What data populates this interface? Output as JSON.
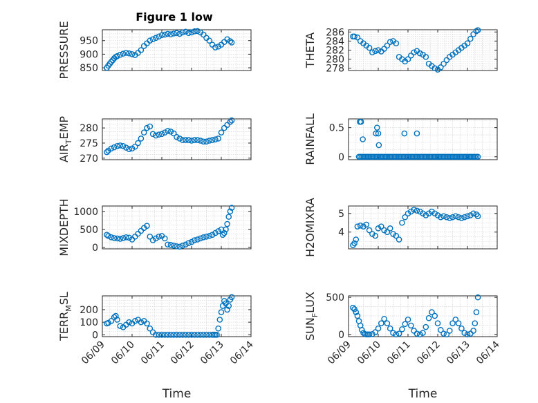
{
  "figure_title": "Figure 1 low",
  "colors": {
    "marker": "#0072BD",
    "axes": "#262626",
    "grid": "#d9d9d9"
  },
  "chart_data": [
    {
      "type": "scatter",
      "ylabel": "PRESSURE",
      "ylim": [
        840,
        990
      ],
      "yticks": [
        850,
        900,
        950
      ],
      "xlabel": "",
      "x": [
        9.15,
        9.2,
        9.25,
        9.3,
        9.35,
        9.4,
        9.45,
        9.5,
        9.6,
        9.7,
        9.8,
        9.9,
        10.0,
        10.1,
        10.2,
        10.3,
        10.4,
        10.5,
        10.6,
        10.7,
        10.8,
        10.9,
        11.0,
        11.1,
        11.2,
        11.3,
        11.4,
        11.5,
        11.6,
        11.7,
        11.8,
        11.9,
        12.0,
        12.1,
        12.2,
        12.3,
        12.4,
        12.5,
        12.6,
        12.7,
        12.8,
        12.9,
        13.0,
        13.1,
        13.2,
        13.3,
        13.35
      ],
      "y": [
        850,
        858,
        865,
        872,
        878,
        885,
        890,
        893,
        898,
        902,
        905,
        903,
        900,
        897,
        905,
        915,
        930,
        940,
        950,
        955,
        960,
        965,
        970,
        972,
        975,
        973,
        976,
        978,
        975,
        980,
        983,
        978,
        980,
        984,
        985,
        980,
        972,
        960,
        950,
        935,
        925,
        928,
        935,
        945,
        955,
        948,
        943
      ]
    },
    {
      "type": "scatter",
      "ylabel": "THETA",
      "ylim": [
        277.5,
        286.5
      ],
      "yticks": [
        278,
        280,
        282,
        284,
        286
      ],
      "xlabel": "",
      "x": [
        9.15,
        9.2,
        9.3,
        9.4,
        9.5,
        9.6,
        9.7,
        9.8,
        9.9,
        10.0,
        10.1,
        10.2,
        10.3,
        10.4,
        10.5,
        10.6,
        10.7,
        10.8,
        10.9,
        11.0,
        11.1,
        11.2,
        11.3,
        11.4,
        11.5,
        11.6,
        11.7,
        11.8,
        11.9,
        12.0,
        12.1,
        12.2,
        12.3,
        12.4,
        12.5,
        12.6,
        12.7,
        12.8,
        12.9,
        13.0,
        13.1,
        13.2,
        13.3,
        13.35
      ],
      "y": [
        285,
        285,
        284.8,
        284,
        283.5,
        283,
        282.5,
        281.5,
        281.8,
        282,
        281.7,
        282.3,
        283,
        283.8,
        284,
        283.5,
        280.5,
        280,
        279.5,
        280,
        280.8,
        281.5,
        281.8,
        281.3,
        281,
        280.5,
        279,
        278.5,
        278,
        277.7,
        278.2,
        279,
        279.8,
        280.5,
        281,
        281.5,
        282,
        282.5,
        283,
        283.5,
        284.5,
        285.5,
        286.2,
        286.4
      ]
    },
    {
      "type": "scatter",
      "ylabel": "AIR_TEMP",
      "ylim": [
        269.5,
        283
      ],
      "yticks": [
        270,
        275,
        280
      ],
      "xlabel": "",
      "x": [
        9.15,
        9.2,
        9.3,
        9.4,
        9.5,
        9.6,
        9.7,
        9.8,
        9.9,
        10.0,
        10.1,
        10.2,
        10.3,
        10.4,
        10.5,
        10.6,
        10.7,
        10.8,
        10.9,
        11.0,
        11.1,
        11.2,
        11.3,
        11.4,
        11.5,
        11.6,
        11.7,
        11.8,
        11.9,
        12.0,
        12.1,
        12.2,
        12.3,
        12.4,
        12.5,
        12.6,
        12.7,
        12.8,
        12.9,
        13.0,
        13.1,
        13.2,
        13.3,
        13.35
      ],
      "y": [
        272,
        272.5,
        273.2,
        273.6,
        274,
        274.2,
        274,
        273.5,
        273,
        273.2,
        273.8,
        275,
        276.5,
        278.5,
        280,
        280.5,
        278,
        277.5,
        277.8,
        278,
        278.5,
        279,
        278.8,
        278.2,
        277,
        276.5,
        276,
        276,
        276,
        275.8,
        276,
        276,
        275.8,
        275.5,
        275.5,
        275.8,
        276,
        276.2,
        276.5,
        278.5,
        280,
        281,
        282,
        282.5
      ]
    },
    {
      "type": "scatter",
      "ylabel": "RAINFALL",
      "ylim": [
        -0.05,
        0.65
      ],
      "yticks": [
        0,
        0.5
      ],
      "xlabel": "",
      "x": [
        9.35,
        9.4,
        9.45,
        9.5,
        9.55,
        9.6,
        9.65,
        9.7,
        9.75,
        9.8,
        9.85,
        9.9,
        9.95,
        10.0,
        10.05,
        10.1,
        10.15,
        10.2,
        10.25,
        10.3,
        10.35,
        10.4,
        10.45,
        10.5,
        10.55,
        10.6,
        10.65,
        10.7,
        10.75,
        10.8,
        10.85,
        10.9,
        10.95,
        11.0,
        11.05,
        11.1,
        11.15,
        11.2,
        11.25,
        11.3,
        11.35,
        11.4,
        11.45,
        11.5,
        11.55,
        11.6,
        11.65,
        11.7,
        11.75,
        11.8,
        11.85,
        11.9,
        11.95,
        12.0,
        12.05,
        12.1,
        12.15,
        12.2,
        12.25,
        12.3,
        12.35,
        12.4,
        12.45,
        12.5,
        12.55,
        12.6,
        12.65,
        12.7,
        12.75,
        12.8,
        12.85,
        12.9,
        12.95,
        13.0,
        13.05,
        13.1,
        13.15,
        13.2,
        13.25,
        13.3,
        13.35,
        9.38,
        9.42,
        9.48,
        9.92,
        9.96,
        10.0,
        10.02,
        10.88,
        11.3
      ],
      "y": [
        0,
        0,
        0,
        0,
        0,
        0,
        0,
        0,
        0,
        0,
        0,
        0,
        0,
        0,
        0,
        0,
        0,
        0,
        0,
        0,
        0,
        0,
        0,
        0,
        0,
        0,
        0,
        0,
        0,
        0,
        0,
        0,
        0,
        0,
        0,
        0,
        0,
        0,
        0,
        0,
        0,
        0,
        0,
        0,
        0,
        0,
        0,
        0,
        0,
        0,
        0,
        0,
        0,
        0,
        0,
        0,
        0,
        0,
        0,
        0,
        0,
        0,
        0,
        0,
        0,
        0,
        0,
        0,
        0,
        0,
        0,
        0,
        0,
        0,
        0,
        0,
        0,
        0,
        0,
        0,
        0,
        0.6,
        0.6,
        0.3,
        0.4,
        0.5,
        0.4,
        0.2,
        0.4,
        0.4
      ]
    },
    {
      "type": "scatter",
      "ylabel": "MIXDEPTH",
      "ylim": [
        -40,
        1150
      ],
      "yticks": [
        0,
        500,
        1000
      ],
      "xlabel": "",
      "x": [
        9.15,
        9.2,
        9.3,
        9.4,
        9.5,
        9.6,
        9.7,
        9.8,
        9.9,
        10.0,
        10.1,
        10.2,
        10.3,
        10.4,
        10.5,
        10.6,
        10.7,
        10.8,
        10.9,
        11.0,
        11.1,
        11.2,
        11.3,
        11.4,
        11.5,
        11.6,
        11.7,
        11.8,
        11.9,
        12.0,
        12.1,
        12.2,
        12.3,
        12.4,
        12.5,
        12.6,
        12.7,
        12.8,
        12.9,
        13.0,
        13.05,
        13.1,
        13.15,
        13.2,
        13.25,
        13.3,
        13.35
      ],
      "y": [
        350,
        320,
        280,
        260,
        250,
        240,
        260,
        280,
        270,
        220,
        300,
        380,
        460,
        540,
        600,
        300,
        200,
        250,
        300,
        320,
        250,
        80,
        70,
        50,
        30,
        20,
        50,
        80,
        120,
        150,
        200,
        220,
        250,
        280,
        300,
        320,
        350,
        400,
        450,
        500,
        350,
        400,
        500,
        650,
        850,
        1000,
        1100
      ]
    },
    {
      "type": "scatter",
      "ylabel": "H2OMIXRA",
      "ylim": [
        3.1,
        5.4
      ],
      "yticks": [
        4,
        5
      ],
      "xlabel": "",
      "x": [
        9.15,
        9.2,
        9.25,
        9.3,
        9.4,
        9.5,
        9.6,
        9.7,
        9.8,
        9.9,
        10.0,
        10.1,
        10.2,
        10.3,
        10.4,
        10.5,
        10.6,
        10.7,
        10.8,
        10.9,
        11.0,
        11.1,
        11.2,
        11.3,
        11.4,
        11.5,
        11.6,
        11.7,
        11.8,
        11.9,
        12.0,
        12.1,
        12.2,
        12.3,
        12.4,
        12.5,
        12.6,
        12.7,
        12.8,
        12.9,
        13.0,
        13.1,
        13.2,
        13.3,
        13.35
      ],
      "y": [
        3.3,
        3.4,
        3.6,
        4.3,
        4.35,
        4.3,
        4.4,
        4.1,
        3.9,
        3.8,
        4.2,
        4.3,
        4.1,
        4.0,
        4.2,
        3.9,
        3.8,
        3.6,
        4.5,
        4.8,
        5.0,
        5.1,
        5.2,
        5.15,
        5.1,
        5.0,
        4.9,
        5.0,
        5.1,
        5.0,
        4.9,
        4.8,
        4.85,
        4.8,
        4.75,
        4.8,
        4.85,
        4.8,
        4.75,
        4.8,
        4.85,
        4.9,
        5.0,
        4.95,
        4.85
      ]
    },
    {
      "type": "scatter",
      "ylabel": "TERR_MSL",
      "ylim": [
        -15,
        310
      ],
      "yticks": [
        0,
        100,
        200
      ],
      "xlabel": "Time",
      "xticks": [
        "06/09",
        "06/10",
        "06/11",
        "06/12",
        "06/13",
        "06/14"
      ],
      "x": [
        9.15,
        9.2,
        9.3,
        9.4,
        9.45,
        9.5,
        9.6,
        9.7,
        9.8,
        9.9,
        10.0,
        10.1,
        10.2,
        10.3,
        10.4,
        10.5,
        10.6,
        10.7,
        10.8,
        10.9,
        11.0,
        11.1,
        11.2,
        11.3,
        11.4,
        11.5,
        11.6,
        11.7,
        11.8,
        11.9,
        12.0,
        12.1,
        12.2,
        12.3,
        12.4,
        12.5,
        12.6,
        12.7,
        12.75,
        12.8,
        12.85,
        12.9,
        12.95,
        13.0,
        13.05,
        13.1,
        13.15,
        13.2,
        13.25,
        13.3,
        13.35
      ],
      "y": [
        90,
        95,
        110,
        140,
        150,
        120,
        70,
        60,
        80,
        100,
        90,
        110,
        120,
        100,
        110,
        90,
        50,
        20,
        0,
        0,
        0,
        0,
        0,
        0,
        0,
        0,
        0,
        0,
        0,
        0,
        0,
        0,
        0,
        0,
        0,
        0,
        0,
        0,
        0,
        0,
        0,
        50,
        120,
        180,
        230,
        270,
        250,
        200,
        230,
        280,
        300
      ]
    },
    {
      "type": "scatter",
      "ylabel": "SUN_FLUX",
      "ylim": [
        -30,
        520
      ],
      "yticks": [
        0,
        500
      ],
      "xlabel": "Time",
      "xticks": [
        "06/09",
        "06/10",
        "06/11",
        "06/12",
        "06/13",
        "06/14"
      ],
      "x": [
        9.15,
        9.2,
        9.25,
        9.3,
        9.35,
        9.4,
        9.45,
        9.5,
        9.55,
        9.6,
        9.65,
        9.7,
        9.8,
        9.9,
        10.0,
        10.1,
        10.2,
        10.3,
        10.4,
        10.5,
        10.6,
        10.7,
        10.8,
        10.9,
        11.0,
        11.1,
        11.2,
        11.3,
        11.4,
        11.5,
        11.6,
        11.7,
        11.8,
        11.9,
        12.0,
        12.1,
        12.2,
        12.3,
        12.4,
        12.5,
        12.6,
        12.7,
        12.8,
        12.9,
        13.0,
        13.1,
        13.2,
        13.25,
        13.3,
        13.35
      ],
      "y": [
        360,
        340,
        300,
        250,
        180,
        120,
        60,
        20,
        5,
        0,
        0,
        0,
        5,
        30,
        80,
        150,
        210,
        150,
        80,
        20,
        0,
        10,
        70,
        140,
        200,
        120,
        50,
        10,
        0,
        20,
        100,
        220,
        300,
        250,
        150,
        60,
        10,
        0,
        50,
        150,
        200,
        150,
        80,
        20,
        0,
        10,
        50,
        150,
        300,
        500
      ]
    }
  ]
}
